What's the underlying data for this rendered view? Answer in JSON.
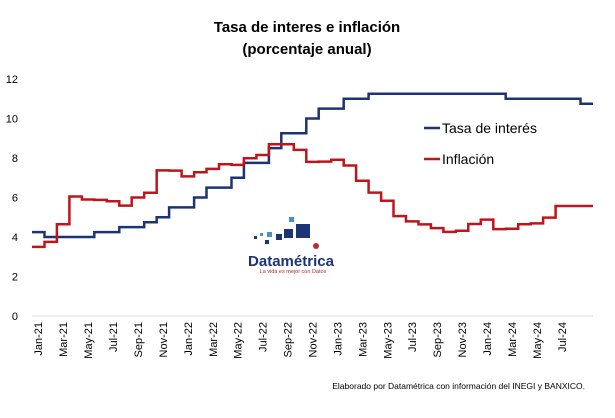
{
  "chart_data": {
    "type": "line",
    "title": "Tasa de interes e inflación",
    "subtitle": "(porcentaje anual)",
    "ylim": [
      0,
      12
    ],
    "yticks": [
      "0",
      "2",
      "4",
      "6",
      "8",
      "10",
      "12"
    ],
    "grid": false,
    "legend_position": "top-right",
    "x": [
      "2021-01",
      "2021-02",
      "2021-03",
      "2021-04",
      "2021-05",
      "2021-06",
      "2021-07",
      "2021-08",
      "2021-09",
      "2021-10",
      "2021-11",
      "2021-12",
      "2022-01",
      "2022-02",
      "2022-03",
      "2022-04",
      "2022-05",
      "2022-06",
      "2022-07",
      "2022-08",
      "2022-09",
      "2022-10",
      "2022-11",
      "2022-12",
      "2023-01",
      "2023-02",
      "2023-03",
      "2023-04",
      "2023-05",
      "2023-06",
      "2023-07",
      "2023-08",
      "2023-09",
      "2023-10",
      "2023-11",
      "2023-12",
      "2024-01",
      "2024-02",
      "2024-03",
      "2024-04",
      "2024-05",
      "2024-06",
      "2024-07",
      "2024-08",
      "2024-09"
    ],
    "xtick_labels": [
      {
        "x": "2021-01",
        "label": "Jan-21"
      },
      {
        "x": "2021-03",
        "label": "Mar-21"
      },
      {
        "x": "2021-05",
        "label": "May-21"
      },
      {
        "x": "2021-07",
        "label": "Jul-21"
      },
      {
        "x": "2021-09",
        "label": "Sep-21"
      },
      {
        "x": "2021-11",
        "label": "Nov-21"
      },
      {
        "x": "2022-01",
        "label": "Jan-22"
      },
      {
        "x": "2022-03",
        "label": "Mar-22"
      },
      {
        "x": "2022-05",
        "label": "May-22"
      },
      {
        "x": "2022-07",
        "label": "Jul-22"
      },
      {
        "x": "2022-09",
        "label": "Sep-22"
      },
      {
        "x": "2022-11",
        "label": "Nov-22"
      },
      {
        "x": "2023-01",
        "label": "Jan-23"
      },
      {
        "x": "2023-03",
        "label": "Mar-23"
      },
      {
        "x": "2023-05",
        "label": "May-23"
      },
      {
        "x": "2023-07",
        "label": "Jul-23"
      },
      {
        "x": "2023-09",
        "label": "Sep-23"
      },
      {
        "x": "2023-11",
        "label": "Nov-23"
      },
      {
        "x": "2024-01",
        "label": "Jan-24"
      },
      {
        "x": "2024-03",
        "label": "Mar-24"
      },
      {
        "x": "2024-05",
        "label": "May-24"
      },
      {
        "x": "2024-07",
        "label": "Jul-24"
      }
    ],
    "series": [
      {
        "name": "Tasa de interés",
        "color": "#1b3475",
        "style": "step",
        "values": [
          4.25,
          4.0,
          4.0,
          4.0,
          4.0,
          4.25,
          4.25,
          4.5,
          4.5,
          4.75,
          5.0,
          5.5,
          5.5,
          6.0,
          6.5,
          6.5,
          7.0,
          7.75,
          7.75,
          8.5,
          9.25,
          9.25,
          10.0,
          10.5,
          10.5,
          11.0,
          11.0,
          11.25,
          11.25,
          11.25,
          11.25,
          11.25,
          11.25,
          11.25,
          11.25,
          11.25,
          11.25,
          11.25,
          11.0,
          11.0,
          11.0,
          11.0,
          11.0,
          11.0,
          10.75
        ]
      },
      {
        "name": "Inflación",
        "color": "#c0141b",
        "style": "step",
        "values": [
          3.5,
          3.75,
          4.65,
          6.05,
          5.9,
          5.88,
          5.81,
          5.59,
          6.0,
          6.24,
          7.37,
          7.36,
          7.07,
          7.28,
          7.45,
          7.68,
          7.65,
          7.99,
          8.15,
          8.7,
          8.7,
          8.41,
          7.8,
          7.82,
          7.91,
          7.62,
          6.85,
          6.25,
          5.84,
          5.06,
          4.79,
          4.64,
          4.45,
          4.26,
          4.32,
          4.66,
          4.88,
          4.4,
          4.42,
          4.65,
          4.69,
          4.98,
          5.57,
          5.57,
          5.57
        ]
      }
    ]
  },
  "logo": {
    "name": "Datamétrica",
    "tagline": "La vida es mejor con Datos"
  },
  "source_note": "Elaborado por Datamétrica con información del INEGI y BANXICO."
}
